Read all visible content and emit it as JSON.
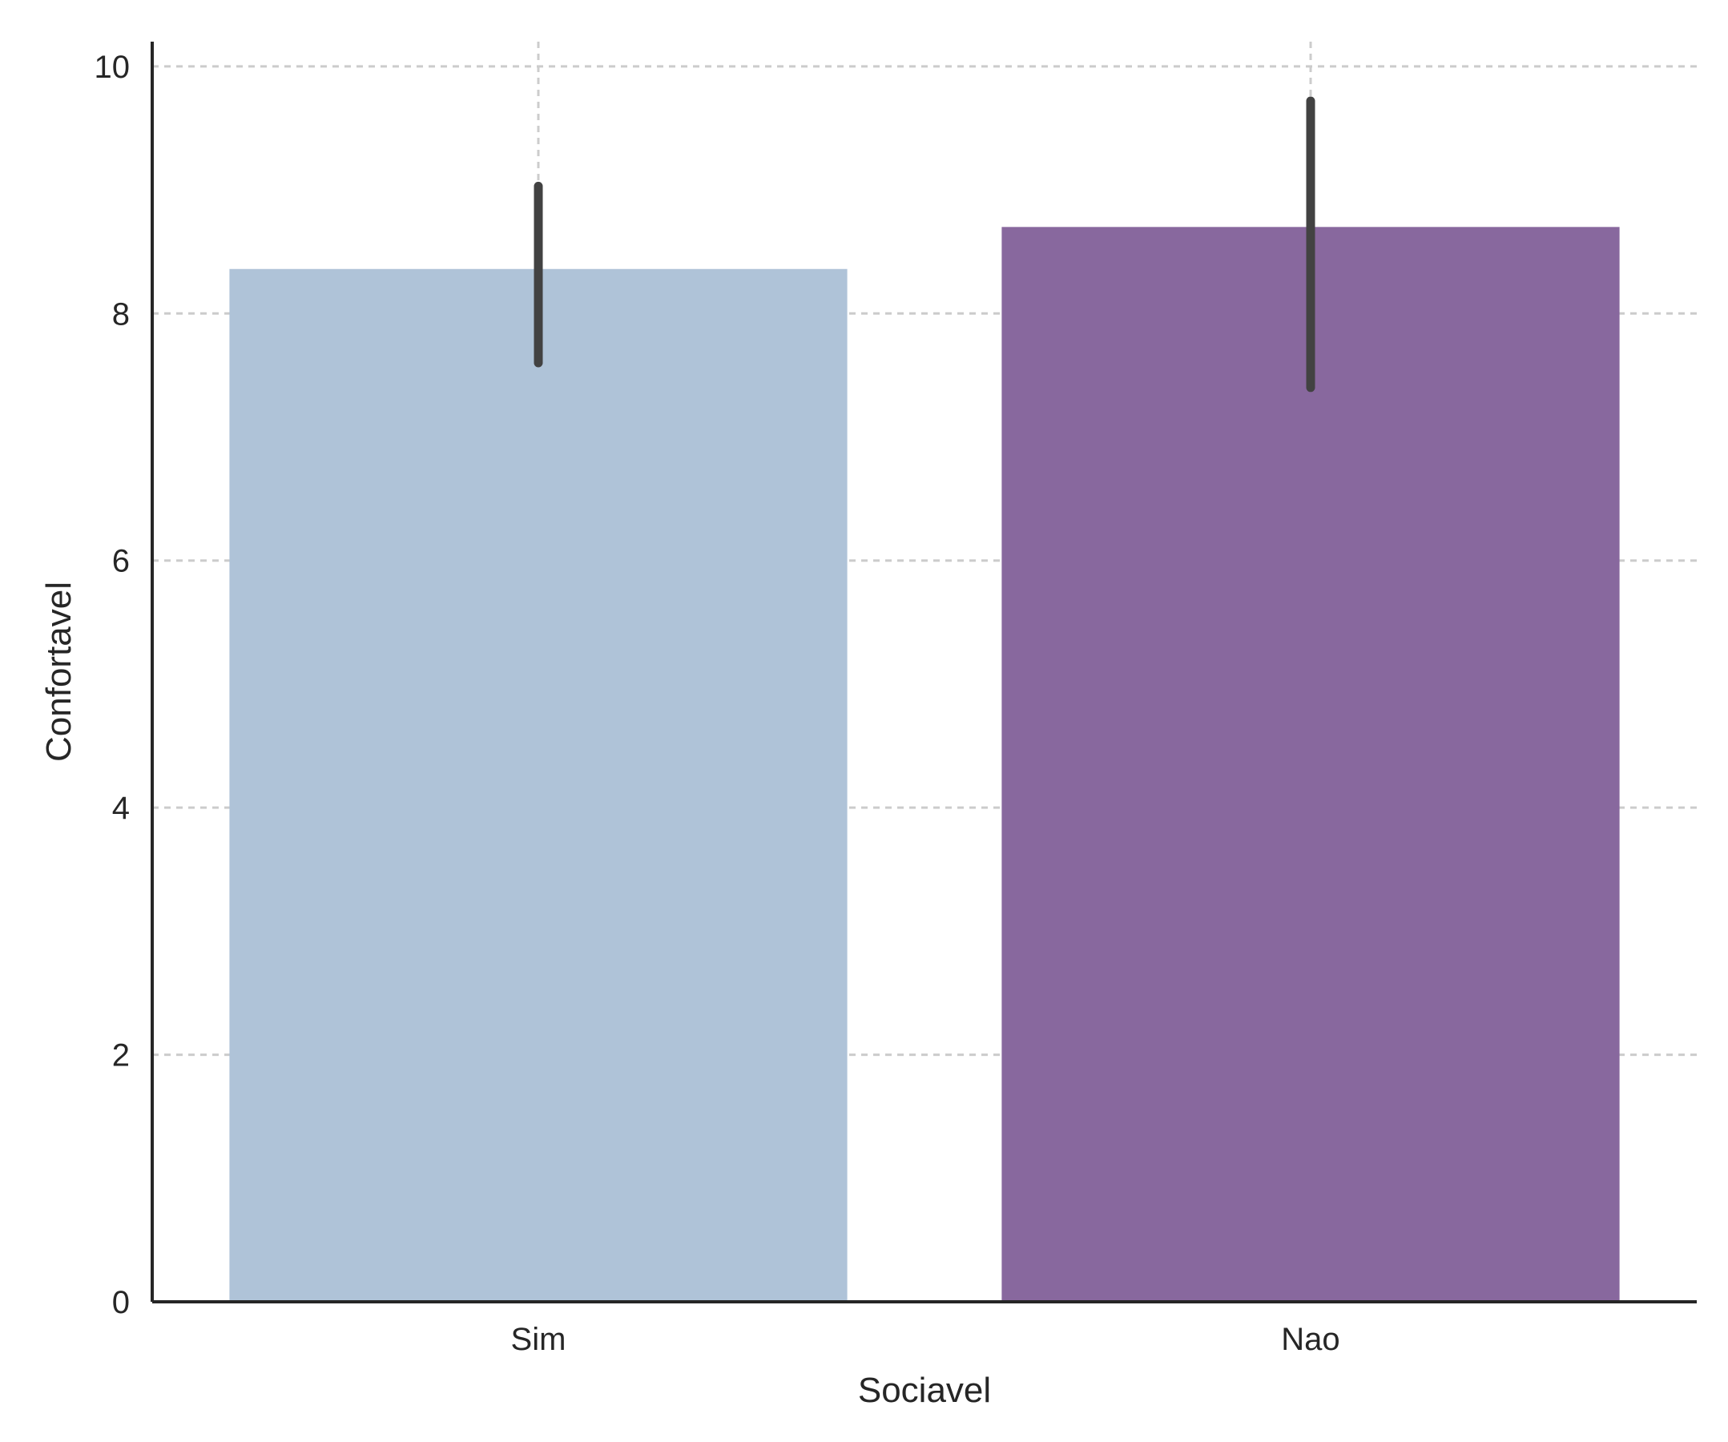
{
  "chart_data": {
    "type": "bar",
    "categories": [
      "Sim",
      "Nao"
    ],
    "values": [
      8.36,
      8.7
    ],
    "error_bars": [
      [
        7.6,
        9.03
      ],
      [
        7.4,
        9.72
      ]
    ],
    "xlabel": "Sociavel",
    "ylabel": "Confortavel",
    "ylim": [
      0,
      10.2
    ],
    "yticks": [
      0,
      2,
      4,
      6,
      8,
      10
    ],
    "ytick_labels": [
      "0",
      "2",
      "4",
      "6",
      "8",
      "10"
    ],
    "colors": [
      "#afc3d8",
      "#88689e"
    ],
    "error_color": "#424242",
    "grid": true
  }
}
